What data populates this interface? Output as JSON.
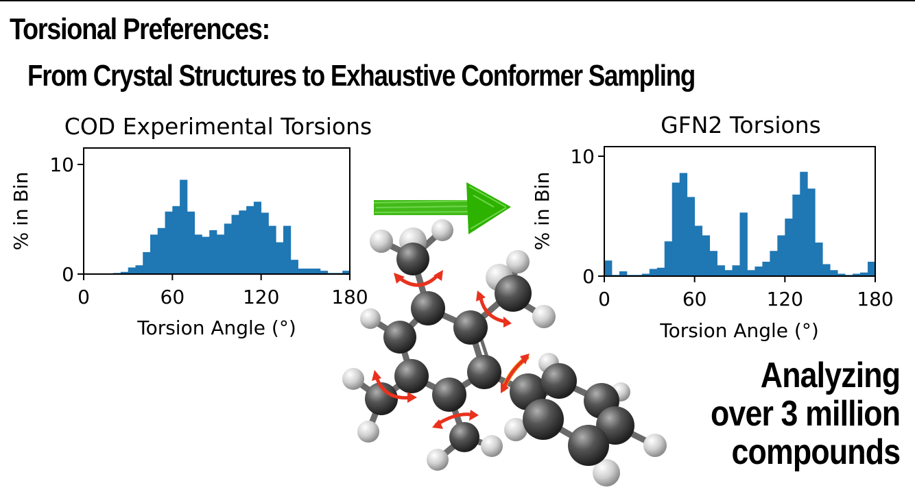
{
  "title": "Torsional Preferences:",
  "subtitle": "From Crystal Structures to Exhaustive Conformer Sampling",
  "tagline": [
    "Analyzing",
    "over 3 million",
    "compounds"
  ],
  "colors": {
    "bar": "#1f77b4",
    "arrow_green": "#2db200",
    "rotation_arrow": "#e8321e",
    "atom_carbon": "#4a4a4a",
    "atom_hydrogen": "#d9d9d9"
  },
  "icons": {
    "transition": "green-arrow-icon",
    "molecule": "molecule-illustration"
  },
  "chart_data": [
    {
      "type": "bar",
      "title": "COD Experimental Torsions",
      "xlabel": "Torsion Angle (°)",
      "ylabel": "% in Bin",
      "xlim": [
        0,
        180
      ],
      "ylim": [
        0,
        11.5
      ],
      "xticks": [
        0,
        60,
        120,
        180
      ],
      "yticks": [
        0,
        10
      ],
      "bin_width": 5,
      "x": [
        2.5,
        7.5,
        12.5,
        17.5,
        22.5,
        27.5,
        32.5,
        37.5,
        42.5,
        47.5,
        52.5,
        57.5,
        62.5,
        67.5,
        72.5,
        77.5,
        82.5,
        87.5,
        92.5,
        97.5,
        102.5,
        107.5,
        112.5,
        117.5,
        122.5,
        127.5,
        132.5,
        137.5,
        142.5,
        147.5,
        152.5,
        157.5,
        162.5,
        167.5,
        172.5,
        177.5
      ],
      "values": [
        0,
        0,
        0,
        0,
        0.1,
        0.2,
        0.6,
        0.8,
        2.0,
        3.6,
        4.2,
        5.7,
        6.2,
        8.6,
        5.7,
        3.6,
        3.4,
        4.0,
        3.6,
        4.6,
        5.4,
        5.8,
        6.2,
        6.6,
        5.6,
        4.4,
        2.9,
        4.4,
        1.3,
        0.5,
        0.5,
        0.5,
        0.3,
        0.1,
        0.1,
        0.3
      ]
    },
    {
      "type": "bar",
      "title": "GFN2 Torsions",
      "xlabel": "Torsion Angle (°)",
      "ylabel": "% in Bin",
      "xlim": [
        0,
        180
      ],
      "ylim": [
        0,
        10.8
      ],
      "xticks": [
        0,
        60,
        120,
        180
      ],
      "yticks": [
        0,
        10
      ],
      "bin_width": 5,
      "x": [
        2.5,
        7.5,
        12.5,
        17.5,
        22.5,
        27.5,
        32.5,
        37.5,
        42.5,
        47.5,
        52.5,
        57.5,
        62.5,
        67.5,
        72.5,
        77.5,
        82.5,
        87.5,
        92.5,
        97.5,
        102.5,
        107.5,
        112.5,
        117.5,
        122.5,
        127.5,
        132.5,
        137.5,
        142.5,
        147.5,
        152.5,
        157.5,
        162.5,
        167.5,
        172.5,
        177.5
      ],
      "values": [
        1.3,
        0.1,
        0.4,
        0.1,
        0.1,
        0.2,
        0.6,
        0.7,
        2.9,
        7.8,
        8.6,
        6.6,
        4.2,
        3.4,
        2.1,
        0.9,
        0.5,
        0.9,
        5.3,
        0.5,
        0.8,
        1.2,
        2.1,
        3.4,
        4.8,
        6.8,
        8.7,
        7.3,
        2.8,
        1.0,
        0.5,
        0.2,
        0.1,
        0.2,
        0.3,
        1.2
      ]
    }
  ]
}
